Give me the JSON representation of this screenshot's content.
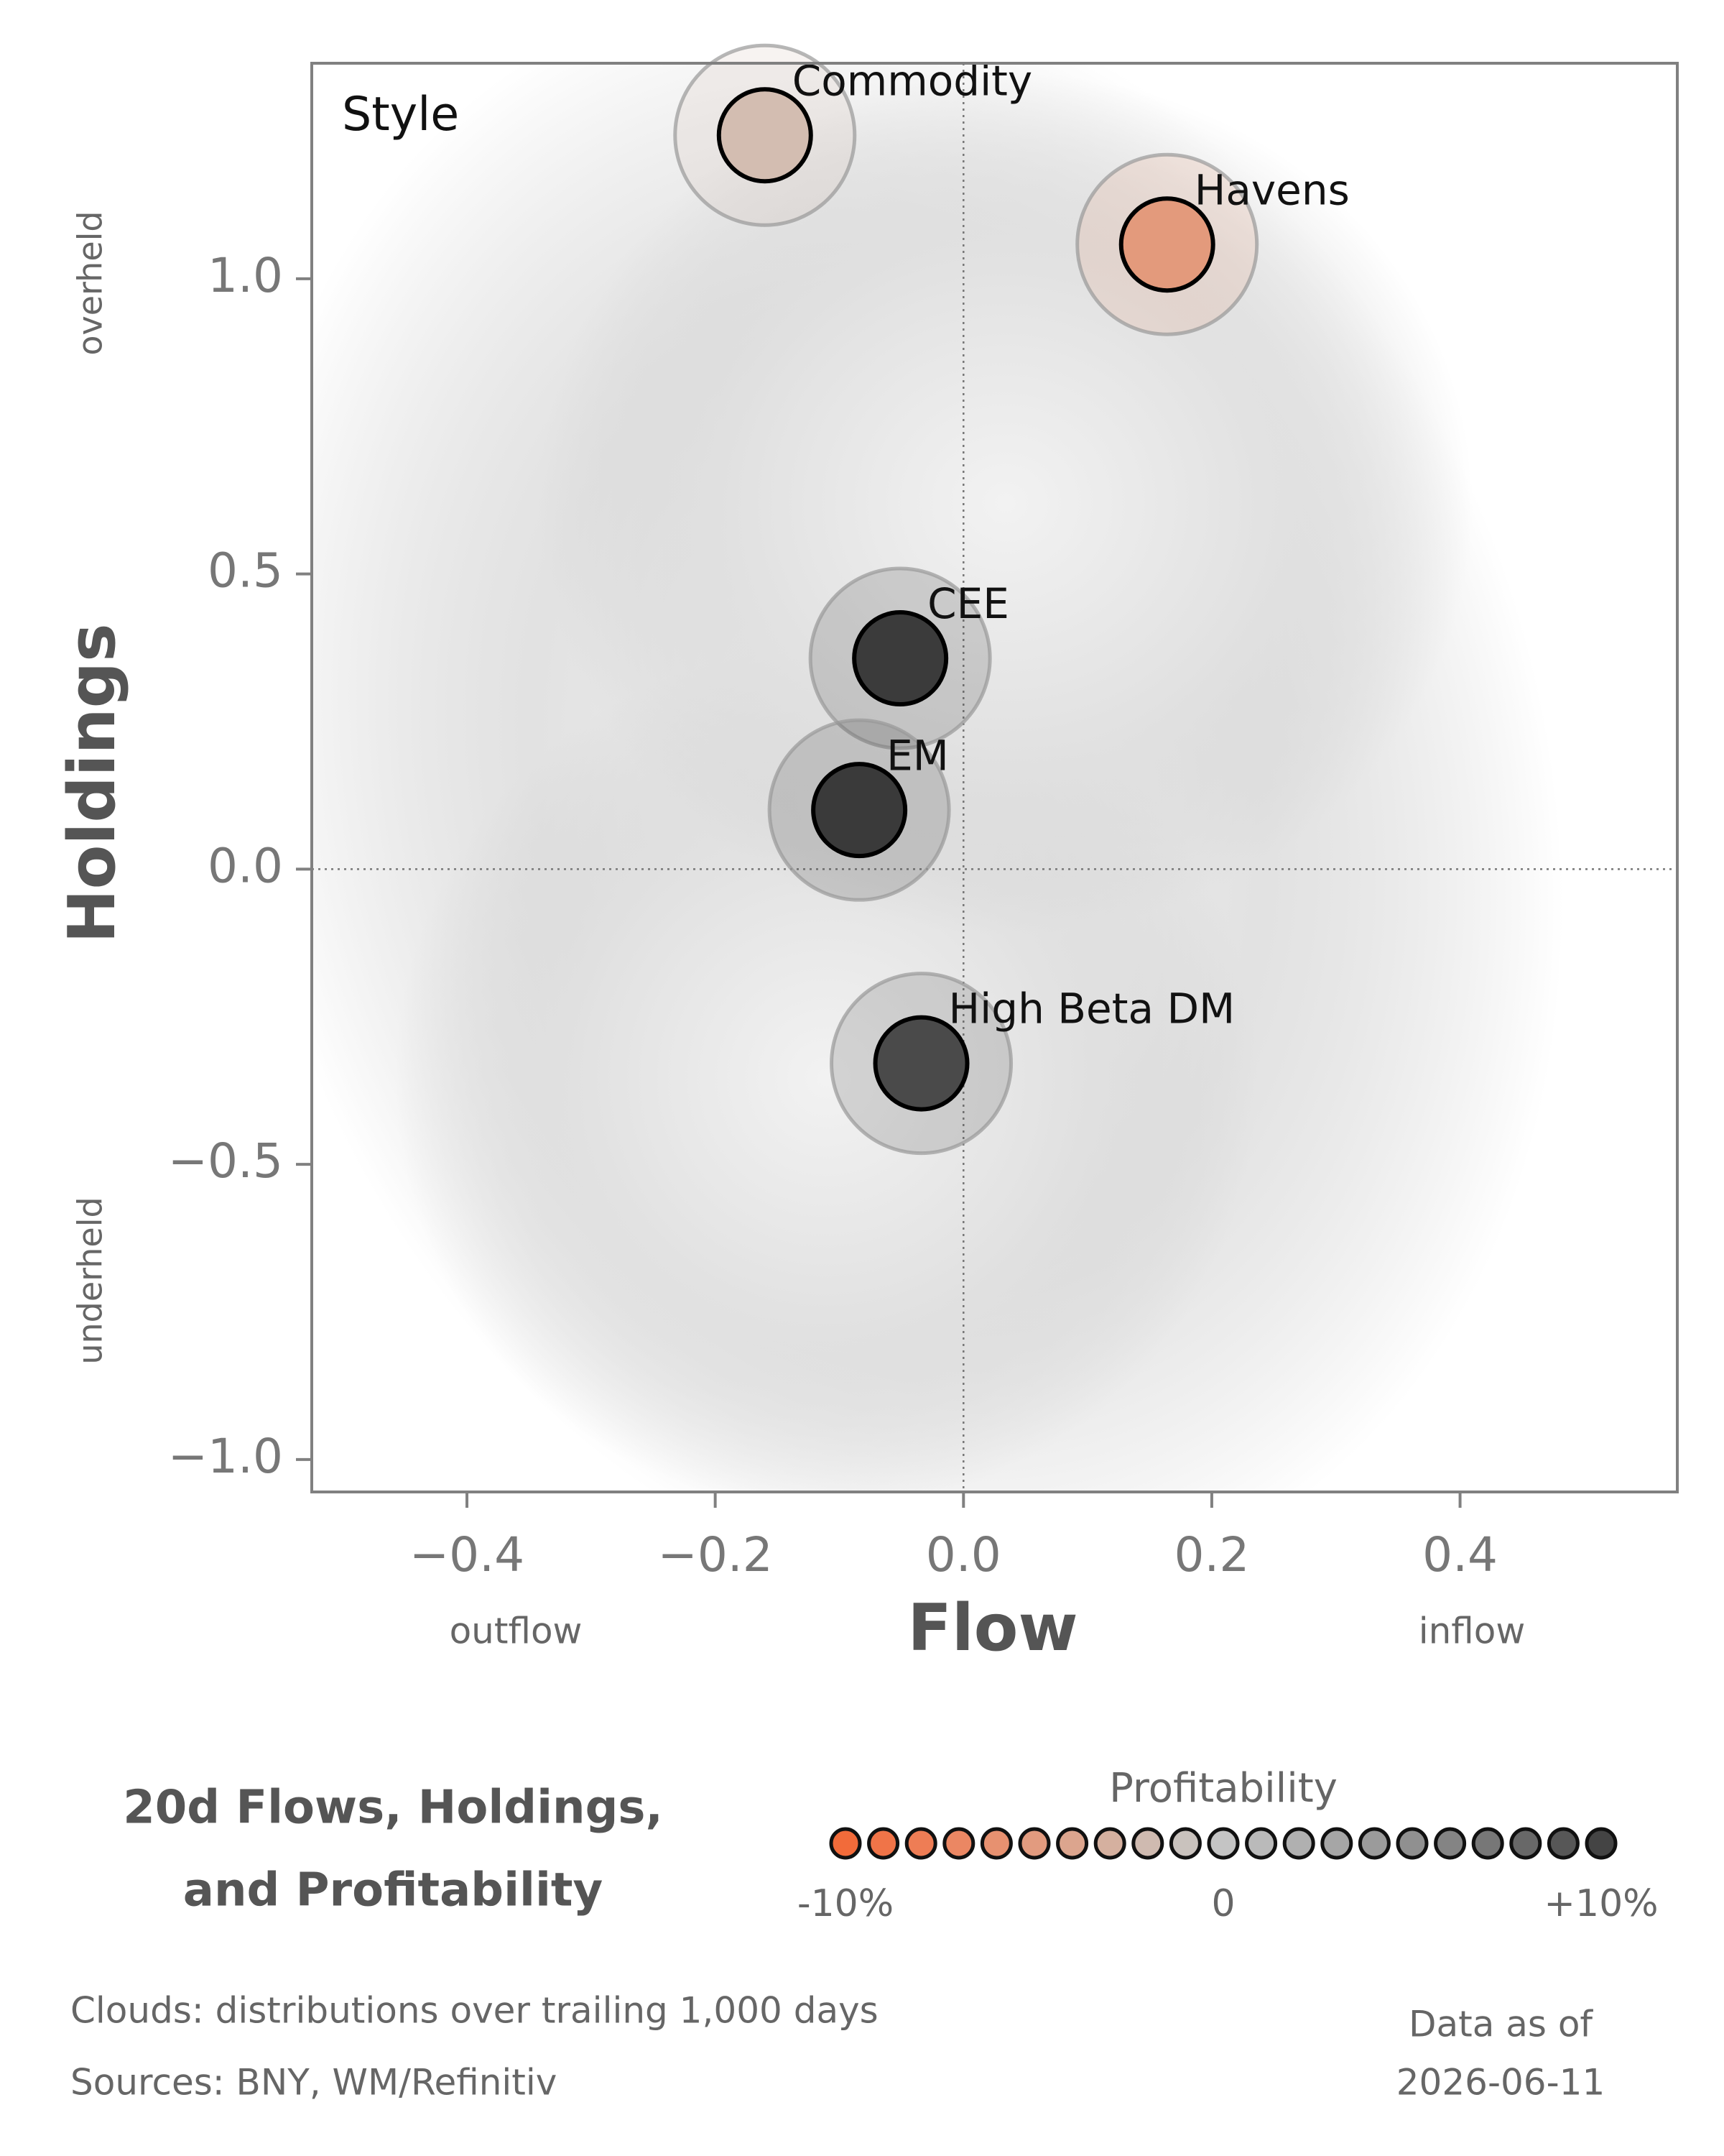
{
  "chart_data": {
    "type": "scatter",
    "title": [
      "20d Flows, Holdings,",
      "and Profitability"
    ],
    "panel_label": "Style",
    "xlabel": "Flow",
    "ylabel": "Holdings",
    "x_side_labels": [
      "outflow",
      "inflow"
    ],
    "y_side_labels": [
      "overheld",
      "underheld"
    ],
    "xlim": [
      -0.525,
      0.575
    ],
    "ylim": [
      -1.055,
      1.365
    ],
    "xticks": [
      {
        "value": -0.4,
        "label": "−0.4"
      },
      {
        "value": -0.2,
        "label": "−0.2"
      },
      {
        "value": 0,
        "label": "0.0"
      },
      0.2,
      0.4
    ],
    "yticks": [
      {
        "value": -1.0,
        "label": "−1.0"
      },
      {
        "value": -0.5,
        "label": "−0.5"
      },
      {
        "value": 0,
        "label": "0.0"
      },
      0.5,
      {
        "value": 1.0,
        "label": "1.0"
      }
    ],
    "x_ref": 0,
    "y_ref": 0,
    "points": [
      {
        "name": "Commodity",
        "x": -0.16,
        "y": 1.243,
        "color": "#d3bdb1"
      },
      {
        "name": "Havens",
        "x": 0.164,
        "y": 1.058,
        "color": "#e39a7c"
      },
      {
        "name": "CEE",
        "x": -0.051,
        "y": 0.357,
        "color": "#3b3b3b"
      },
      {
        "name": "EM",
        "x": -0.084,
        "y": 0.1,
        "color": "#3a3a3a"
      },
      {
        "name": "High Beta DM",
        "x": -0.034,
        "y": -0.329,
        "color": "#4a4a4a"
      }
    ],
    "legend": {
      "title": "Profitability",
      "labels": [
        "-10%",
        "0",
        "+10%"
      ],
      "colors": [
        "#f26b3a",
        "#f07448",
        "#ee7d55",
        "#eb8763",
        "#e79170",
        "#e29b7f",
        "#dca58e",
        "#d5b09f",
        "#cfbab0",
        "#c9c2bd",
        "#c4c4c4",
        "#bababa",
        "#b0b0b0",
        "#a6a6a6",
        "#9b9b9b",
        "#909090",
        "#848484",
        "#777777",
        "#686868",
        "#575757",
        "#444444"
      ]
    },
    "footnotes": [
      "Clouds:  distributions over trailing 1,000 days",
      "Sources:  BNY, WM/Refinitiv"
    ],
    "date_note": [
      "Data as of",
      "2026-06-11"
    ]
  }
}
